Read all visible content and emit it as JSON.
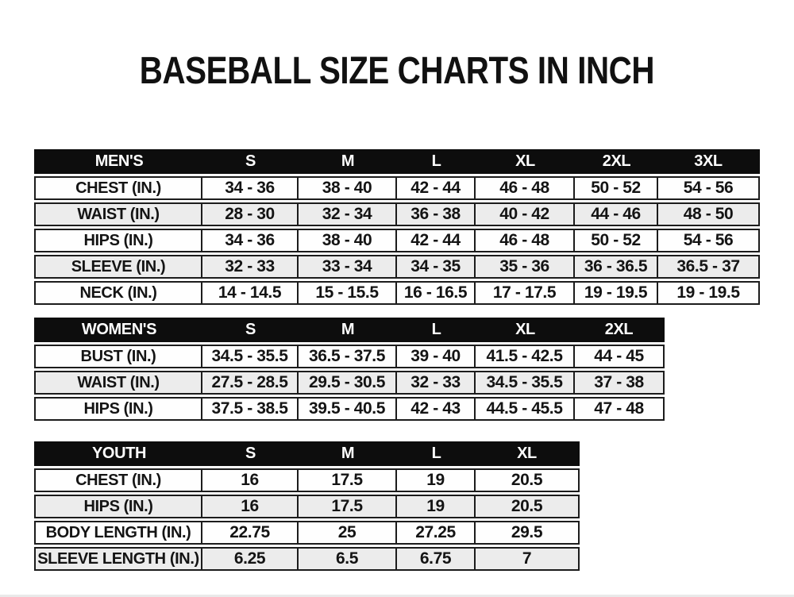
{
  "page": {
    "title": "BASEBALL SIZE CHARTS IN INCH"
  },
  "colors": {
    "page_bg": "#ffffff",
    "header_bg": "#0d0d0d",
    "header_text": "#ffffff",
    "row_bg": "#fefefe",
    "row_alt_bg": "#ececec",
    "border": "#1c1c1c",
    "text": "#141414"
  },
  "tables": [
    {
      "id": "mens",
      "header": {
        "label": "MEN'S",
        "sizes": [
          "S",
          "M",
          "L",
          "XL",
          "2XL",
          "3XL"
        ]
      },
      "rows": [
        {
          "label": "CHEST (IN.)",
          "values": [
            "34 - 36",
            "38 - 40",
            "42 - 44",
            "46 - 48",
            "50 - 52",
            "54 - 56"
          ]
        },
        {
          "label": "WAIST (IN.)",
          "values": [
            "28 - 30",
            "32 - 34",
            "36 - 38",
            "40 - 42",
            "44 - 46",
            "48 - 50"
          ]
        },
        {
          "label": "HIPS (IN.)",
          "values": [
            "34 - 36",
            "38 - 40",
            "42 - 44",
            "46 - 48",
            "50 - 52",
            "54 - 56"
          ]
        },
        {
          "label": "SLEEVE (IN.)",
          "values": [
            "32 - 33",
            "33 - 34",
            "34 - 35",
            "35 - 36",
            "36 - 36.5",
            "36.5 - 37"
          ]
        },
        {
          "label": "NECK (IN.)",
          "values": [
            "14 - 14.5",
            "15 - 15.5",
            "16 - 16.5",
            "17 - 17.5",
            "19 - 19.5",
            "19 - 19.5"
          ]
        }
      ]
    },
    {
      "id": "womens",
      "header": {
        "label": "WOMEN'S",
        "sizes": [
          "S",
          "M",
          "L",
          "XL",
          "2XL"
        ]
      },
      "rows": [
        {
          "label": "BUST (IN.)",
          "values": [
            "34.5 - 35.5",
            "36.5 - 37.5",
            "39 - 40",
            "41.5 - 42.5",
            "44 - 45"
          ]
        },
        {
          "label": "WAIST (IN.)",
          "values": [
            "27.5 - 28.5",
            "29.5 - 30.5",
            "32 - 33",
            "34.5 - 35.5",
            "37 - 38"
          ]
        },
        {
          "label": "HIPS (IN.)",
          "values": [
            "37.5 - 38.5",
            "39.5 - 40.5",
            "42 - 43",
            "44.5 - 45.5",
            "47 - 48"
          ]
        }
      ]
    },
    {
      "id": "youth",
      "header": {
        "label": "YOUTH",
        "sizes": [
          "S",
          "M",
          "L",
          "XL"
        ]
      },
      "rows": [
        {
          "label": "CHEST (IN.)",
          "values": [
            "16",
            "17.5",
            "19",
            "20.5"
          ]
        },
        {
          "label": "HIPS (IN.)",
          "values": [
            "16",
            "17.5",
            "19",
            "20.5"
          ]
        },
        {
          "label": "BODY LENGTH (IN.)",
          "values": [
            "22.75",
            "25",
            "27.25",
            "29.5"
          ]
        },
        {
          "label": "SLEEVE LENGTH (IN.)",
          "values": [
            "6.25",
            "6.5",
            "6.75",
            "7"
          ]
        }
      ]
    }
  ]
}
